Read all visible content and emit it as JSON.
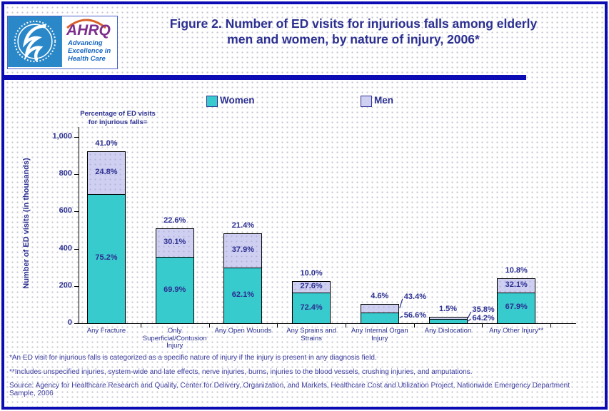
{
  "header": {
    "title_line1": "Figure 2. Number of ED visits for injurious falls among elderly",
    "title_line2": "men and women, by nature of injury, 2006*",
    "logo": {
      "ahrq_name": "AHRQ",
      "tagline_line1": "Advancing",
      "tagline_line2": "Excellence in",
      "tagline_line3": "Health Care"
    }
  },
  "legend": {
    "women_label": "Women",
    "men_label": "Men"
  },
  "annotation": {
    "line1": "Percentage of ED visits",
    "line2": "for injurious falls="
  },
  "colors": {
    "women_fill": "#38cbce",
    "men_fill": "#cfcff2",
    "navy_text": "#2b2f90",
    "band_blue": "#0c0cb4"
  },
  "chart_data": {
    "type": "bar",
    "stacked": true,
    "title": "Figure 2. Number of ED visits for injurious falls among elderly men and women, by nature of injury, 2006*",
    "ylabel": "Number of ED visits (in thousands)",
    "xlabel": "",
    "units": "thousands of ED visits",
    "ylim": [
      0,
      1000
    ],
    "grid": false,
    "legend_position": "top",
    "yticks": [
      {
        "label": "0",
        "value": 0
      },
      {
        "label": "200",
        "value": 200
      },
      {
        "label": "400",
        "value": 400
      },
      {
        "label": "600",
        "value": 600
      },
      {
        "label": "800",
        "value": 800
      },
      {
        "label": "1,000",
        "value": 1000
      }
    ],
    "categories": [
      "Any Fracture",
      "Only Superficial/Contusion Injury",
      "Any Open Wounds",
      "Any Sprains and Strains",
      "Any Internal Organ Injury",
      "Any Dislocation",
      "Any Other Injury**"
    ],
    "category_label_lines": [
      [
        "Any Fracture"
      ],
      [
        "Only",
        "Superficial/Contusion",
        "Injury"
      ],
      [
        "Any Open Wounds"
      ],
      [
        "Any Sprains and",
        "Strains"
      ],
      [
        "Any Internal Organ",
        "Injury"
      ],
      [
        "Any Dislocation"
      ],
      [
        "Any Other Injury**"
      ]
    ],
    "series": [
      {
        "name": "Women",
        "color": "#38cbce",
        "values": [
          694,
          356,
          299,
          163,
          59,
          22,
          165
        ]
      },
      {
        "name": "Men",
        "color": "#cfcff2",
        "values": [
          229,
          153,
          183,
          62,
          45,
          12,
          78
        ]
      }
    ],
    "pct_of_all_visits": [
      "41.0%",
      "22.6%",
      "21.4%",
      "10.0%",
      "4.6%",
      "1.5%",
      "10.8%"
    ],
    "pct_women": [
      "75.2%",
      "69.9%",
      "62.1%",
      "72.4%",
      "56.6%",
      "64.2%",
      "67.9%"
    ],
    "pct_men": [
      "24.8%",
      "30.1%",
      "37.9%",
      "27.6%",
      "43.4%",
      "35.8%",
      "32.1%"
    ],
    "callout_labels": [
      false,
      false,
      false,
      false,
      true,
      true,
      false
    ]
  },
  "footnotes": {
    "fn1": "*An ED visit for injurious falls is categorized as a specific nature of injury if the injury is present in any diagnosis field.",
    "fn2": "**Includes unspecified injuries, system-wide and late effects, nerve injuries, burns, injuries to the blood vessels, crushing injuries, and amputations.",
    "source": "Source: Agency for Healthcare Research and Quality, Center for Delivery, Organization, and Markets, Healthcare Cost and Utilization Project, Nationwide Emergency Department Sample, 2006"
  }
}
